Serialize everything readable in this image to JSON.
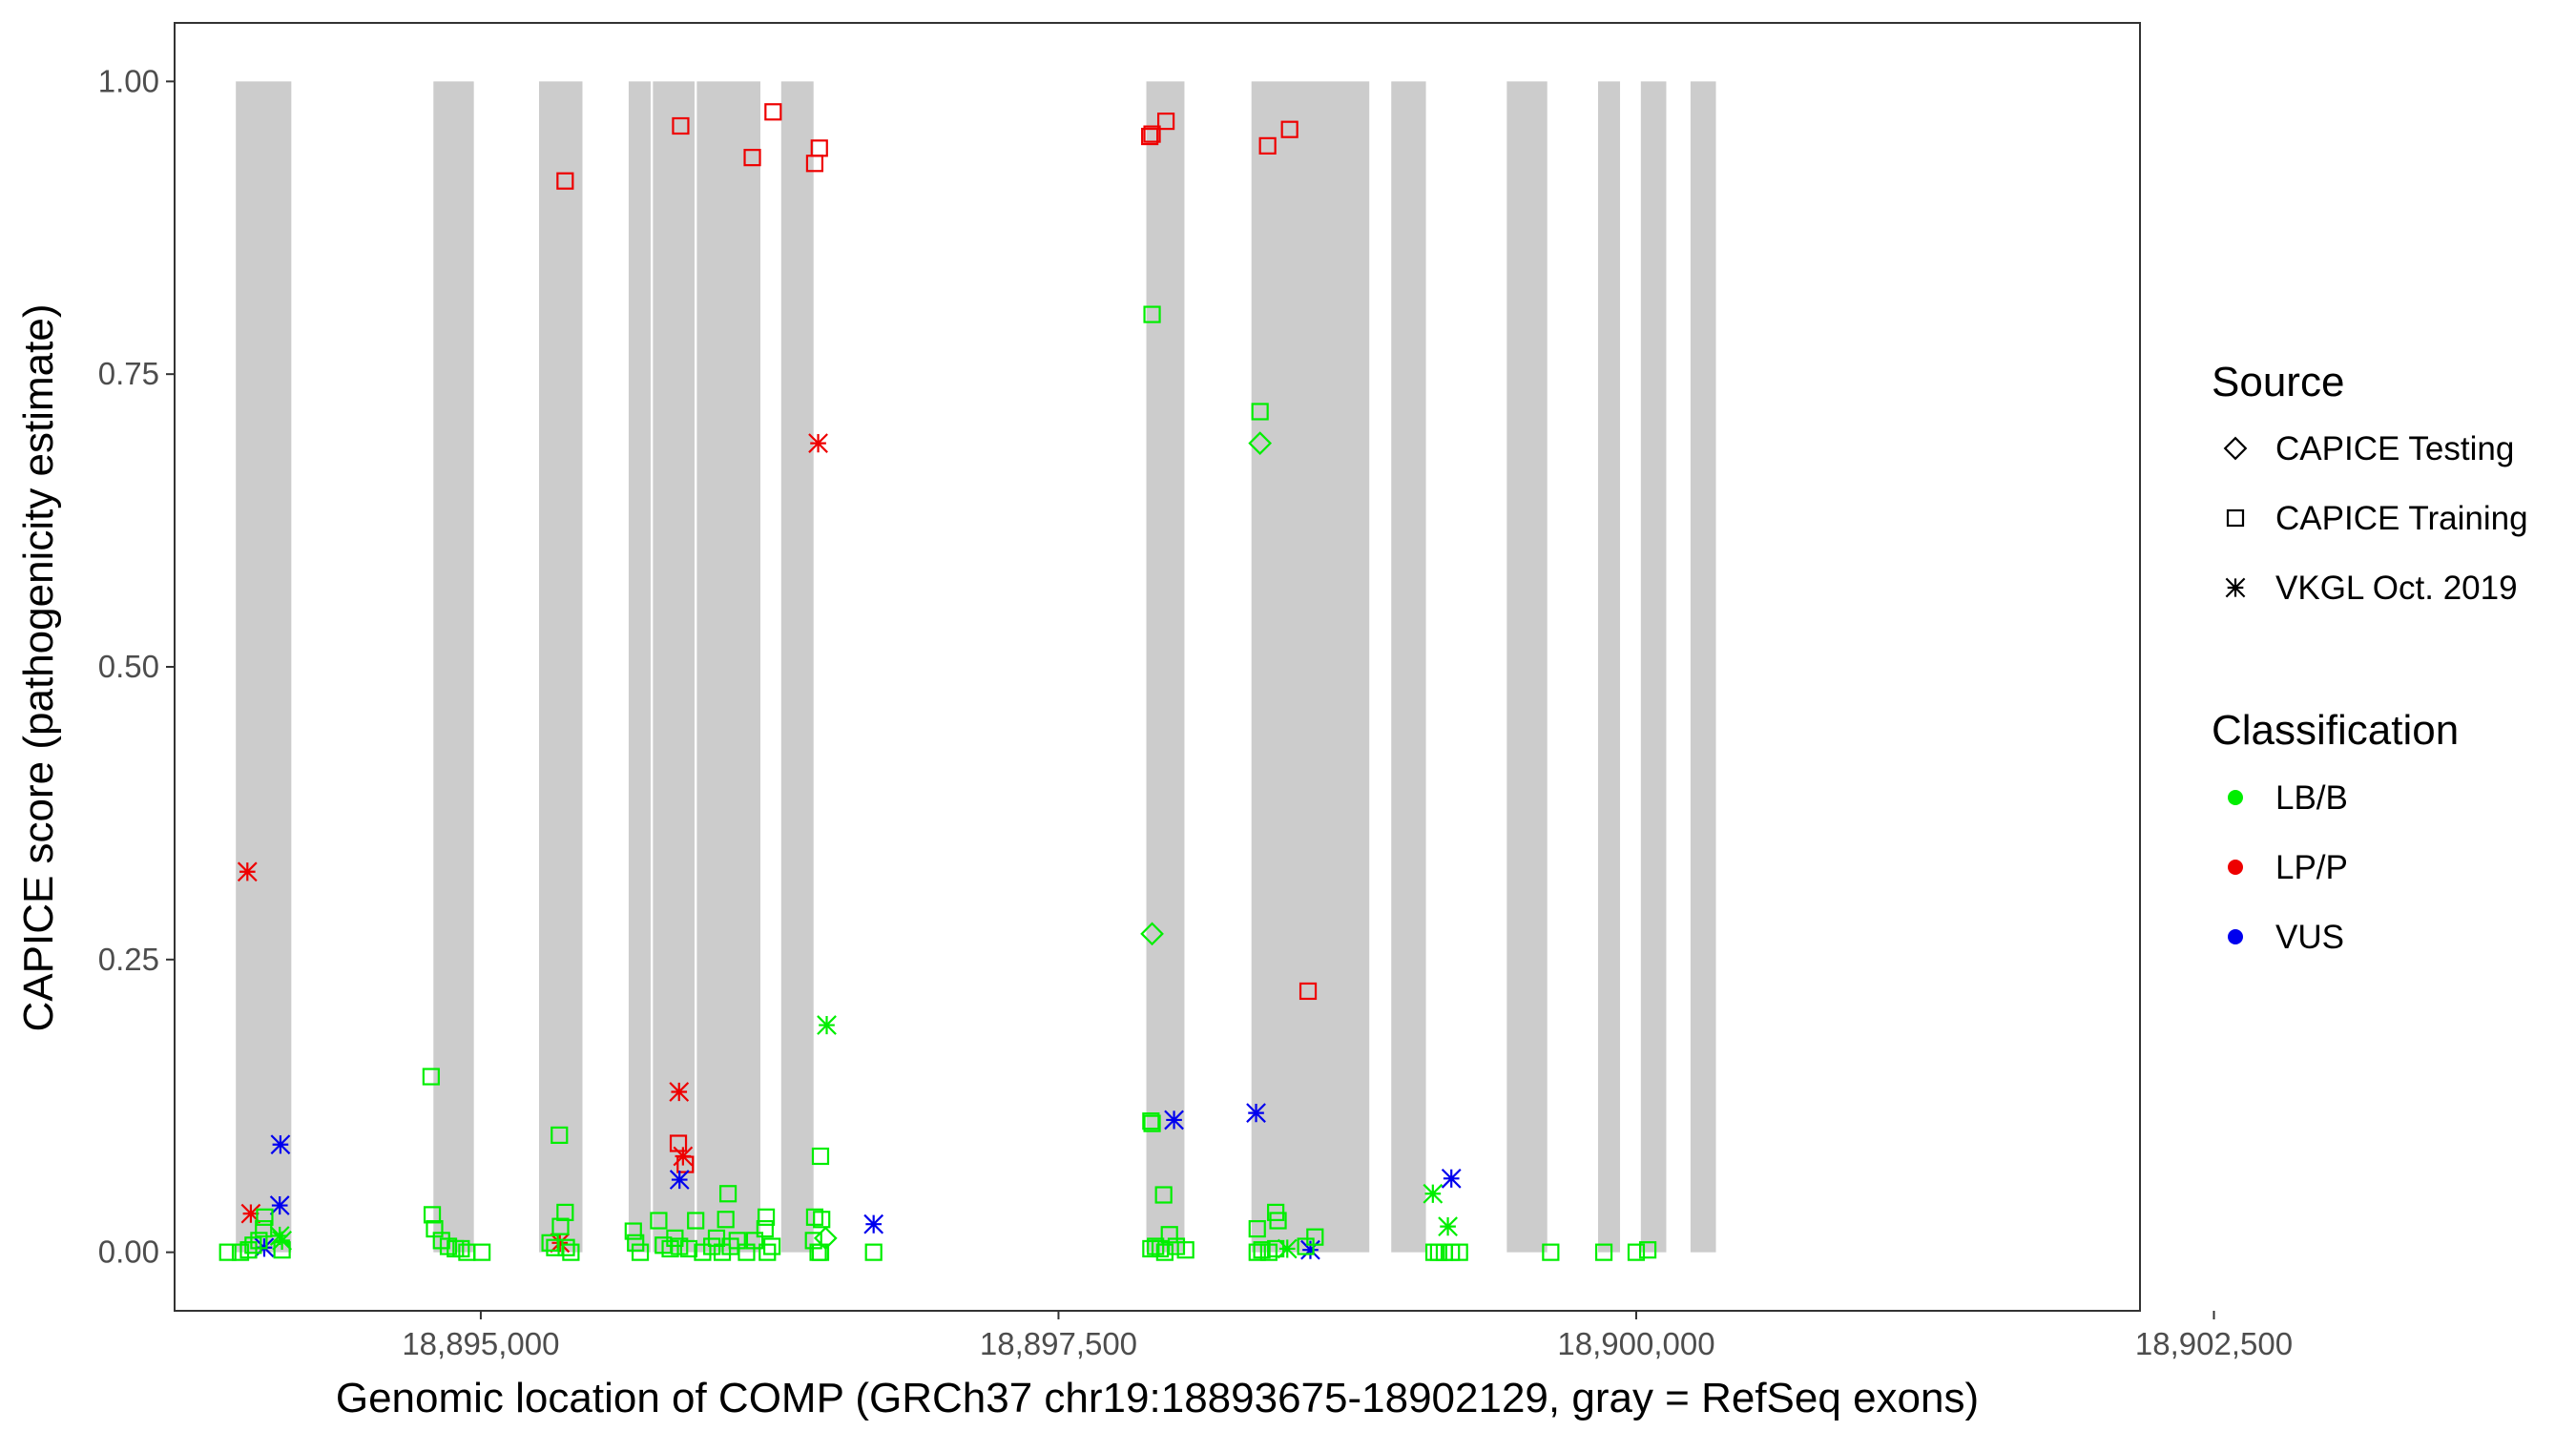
{
  "chart_data": {
    "type": "scatter",
    "title": "",
    "xlabel": "Genomic location of COMP (GRCh37 chr19:18893675-18902129, gray = RefSeq exons)",
    "ylabel": "CAPICE score (pathogenicity estimate)",
    "xlim": [
      18893675,
      18902180
    ],
    "ylim": [
      -0.05,
      1.05
    ],
    "x_ticks": [
      18895000,
      18897500,
      18900000,
      18902500
    ],
    "x_tick_labels": [
      "18,895,000",
      "18,897,500",
      "18,900,000",
      "18,902,500"
    ],
    "y_ticks": [
      0.0,
      0.25,
      0.5,
      0.75,
      1.0
    ],
    "y_tick_labels": [
      "0.00",
      "0.25",
      "0.50",
      "0.75",
      "1.00"
    ],
    "grid": false,
    "legend_position": "right",
    "exons": [
      [
        18893940,
        18894180
      ],
      [
        18894795,
        18894970
      ],
      [
        18895252,
        18895440
      ],
      [
        18895640,
        18895735
      ],
      [
        18895745,
        18895925
      ],
      [
        18895935,
        18896210
      ],
      [
        18896300,
        18896440
      ],
      [
        18897880,
        18898045
      ],
      [
        18898335,
        18898845
      ],
      [
        18898940,
        18899090
      ],
      [
        18899440,
        18899615
      ],
      [
        18899835,
        18899930
      ],
      [
        18900020,
        18900130
      ],
      [
        18900235,
        18900345
      ]
    ],
    "legend_source": {
      "title": "Source",
      "entries": [
        {
          "label": "CAPICE Testing",
          "shape": "diamond"
        },
        {
          "label": "CAPICE Training",
          "shape": "square"
        },
        {
          "label": "VKGL Oct. 2019",
          "shape": "asterisk"
        }
      ]
    },
    "legend_classification": {
      "title": "Classification",
      "entries": [
        {
          "label": "LB/B",
          "color": "#00ee00"
        },
        {
          "label": "LP/P",
          "color": "#ee0000"
        },
        {
          "label": "VUS",
          "color": "#0000ee"
        }
      ]
    },
    "series": [
      {
        "source": "CAPICE Training",
        "classification": "LP/P",
        "shape": "square",
        "color": "#ee0000",
        "points": [
          [
            18895365,
            0.915
          ],
          [
            18895865,
            0.962
          ],
          [
            18896175,
            0.935
          ],
          [
            18896265,
            0.974
          ],
          [
            18896445,
            0.93
          ],
          [
            18896465,
            0.943
          ],
          [
            18897895,
            0.953
          ],
          [
            18897905,
            0.955
          ],
          [
            18897965,
            0.966
          ],
          [
            18898405,
            0.945
          ],
          [
            18898500,
            0.959
          ],
          [
            18898580,
            0.223
          ],
          [
            18895855,
            0.093
          ],
          [
            18895885,
            0.075
          ]
        ]
      },
      {
        "source": "VKGL Oct. 2019",
        "classification": "LP/P",
        "shape": "asterisk",
        "color": "#ee0000",
        "points": [
          [
            18893990,
            0.325
          ],
          [
            18894005,
            0.033
          ],
          [
            18895342,
            0.008
          ],
          [
            18895858,
            0.137
          ],
          [
            18895875,
            0.082
          ],
          [
            18896460,
            0.691
          ]
        ]
      },
      {
        "source": "VKGL Oct. 2019",
        "classification": "VUS",
        "shape": "asterisk",
        "color": "#0000ee",
        "points": [
          [
            18894133,
            0.092
          ],
          [
            18894130,
            0.04
          ],
          [
            18894063,
            0.004
          ],
          [
            18895860,
            0.062
          ],
          [
            18896700,
            0.024
          ],
          [
            18898000,
            0.113
          ],
          [
            18898355,
            0.119
          ],
          [
            18898590,
            0.002
          ],
          [
            18899200,
            0.063
          ]
        ]
      },
      {
        "source": "VKGL Oct. 2019",
        "classification": "LB/B",
        "shape": "asterisk",
        "color": "#00ee00",
        "points": [
          [
            18894130,
            0.014
          ],
          [
            18894140,
            0.01
          ],
          [
            18896497,
            0.194
          ],
          [
            18898490,
            0.003
          ],
          [
            18899120,
            0.05
          ],
          [
            18899185,
            0.022
          ]
        ]
      },
      {
        "source": "CAPICE Testing",
        "classification": "LB/B",
        "shape": "diamond",
        "color": "#00ee00",
        "points": [
          [
            18897905,
            0.272
          ],
          [
            18898372,
            0.691
          ],
          [
            18896492,
            0.012
          ]
        ]
      },
      {
        "source": "CAPICE Training",
        "classification": "LB/B",
        "shape": "square",
        "color": "#00ee00",
        "points": [
          [
            18894785,
            0.15
          ],
          [
            18895340,
            0.1
          ],
          [
            18896470,
            0.082
          ],
          [
            18897905,
            0.801
          ],
          [
            18898372,
            0.718
          ],
          [
            18897900,
            0.112
          ],
          [
            18897905,
            0.11
          ],
          [
            18897955,
            0.049
          ],
          [
            18898440,
            0.034
          ],
          [
            18898450,
            0.027
          ],
          [
            18898360,
            0.02
          ],
          [
            18898610,
            0.013
          ],
          [
            18895365,
            0.034
          ],
          [
            18896070,
            0.05
          ],
          [
            18896235,
            0.03
          ],
          [
            18896445,
            0.03
          ],
          [
            18896475,
            0.028
          ],
          [
            18893905,
            0.0
          ],
          [
            18893960,
            0.0
          ],
          [
            18893995,
            0.002
          ],
          [
            18894015,
            0.006
          ],
          [
            18894040,
            0.01
          ],
          [
            18894060,
            0.02
          ],
          [
            18894065,
            0.03
          ],
          [
            18894140,
            0.002
          ],
          [
            18894790,
            0.032
          ],
          [
            18894800,
            0.02
          ],
          [
            18894830,
            0.01
          ],
          [
            18894860,
            0.005
          ],
          [
            18894890,
            0.003
          ],
          [
            18894915,
            0.003
          ],
          [
            18894940,
            0.0
          ],
          [
            18895005,
            0.0
          ],
          [
            18895300,
            0.008
          ],
          [
            18895320,
            0.004
          ],
          [
            18895345,
            0.022
          ],
          [
            18895370,
            0.004
          ],
          [
            18895390,
            0.0
          ],
          [
            18895660,
            0.018
          ],
          [
            18895670,
            0.008
          ],
          [
            18895690,
            0.0
          ],
          [
            18895770,
            0.027
          ],
          [
            18895790,
            0.006
          ],
          [
            18895820,
            0.003
          ],
          [
            18895840,
            0.012
          ],
          [
            18895860,
            0.005
          ],
          [
            18895900,
            0.003
          ],
          [
            18895930,
            0.027
          ],
          [
            18895960,
            0.0
          ],
          [
            18896000,
            0.005
          ],
          [
            18896020,
            0.012
          ],
          [
            18896045,
            0.0
          ],
          [
            18896060,
            0.028
          ],
          [
            18896080,
            0.005
          ],
          [
            18896110,
            0.01
          ],
          [
            18896150,
            0.0
          ],
          [
            18896185,
            0.01
          ],
          [
            18896230,
            0.02
          ],
          [
            18896240,
            0.0
          ],
          [
            18896260,
            0.005
          ],
          [
            18896440,
            0.01
          ],
          [
            18896460,
            0.0
          ],
          [
            18896470,
            0.0
          ],
          [
            18896700,
            0.0
          ],
          [
            18897900,
            0.003
          ],
          [
            18897920,
            0.005
          ],
          [
            18897940,
            0.003
          ],
          [
            18897960,
            0.0
          ],
          [
            18897980,
            0.015
          ],
          [
            18898010,
            0.005
          ],
          [
            18898050,
            0.002
          ],
          [
            18898360,
            0.0
          ],
          [
            18898380,
            0.002
          ],
          [
            18898410,
            0.0
          ],
          [
            18898440,
            0.003
          ],
          [
            18898570,
            0.005
          ],
          [
            18899125,
            0.0
          ],
          [
            18899145,
            0.0
          ],
          [
            18899170,
            0.0
          ],
          [
            18899200,
            0.0
          ],
          [
            18899235,
            0.0
          ],
          [
            18899630,
            0.0
          ],
          [
            18899860,
            0.0
          ],
          [
            18900000,
            0.0
          ],
          [
            18900050,
            0.002
          ]
        ]
      }
    ]
  }
}
